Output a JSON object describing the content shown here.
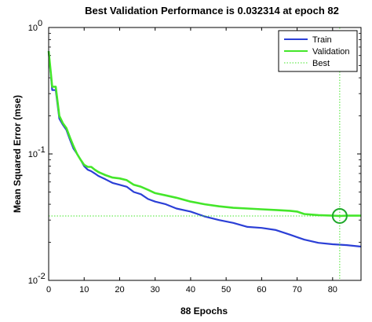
{
  "chart_data": {
    "type": "line",
    "title": "Best Validation Performance is 0.032314 at epoch 82",
    "xlabel": "88 Epochs",
    "ylabel": "Mean Squared Error  (mse)",
    "xlim": [
      0,
      88
    ],
    "ylim": [
      0.01,
      1
    ],
    "yscale": "log",
    "grid": false,
    "legend_position": "top-right",
    "x_ticks": [
      0,
      10,
      20,
      30,
      40,
      50,
      60,
      70,
      80
    ],
    "y_ticks": [
      {
        "value": 1,
        "label": "10",
        "exp": "0"
      },
      {
        "value": 0.1,
        "label": "10",
        "exp": "-1"
      },
      {
        "value": 0.01,
        "label": "10",
        "exp": "-2"
      }
    ],
    "best": {
      "epoch": 82,
      "value": 0.032314
    },
    "series": [
      {
        "name": "Train",
        "color": "#2b3fd6",
        "x": [
          0,
          1,
          2,
          3,
          4,
          5,
          6,
          7,
          8,
          9,
          10,
          11,
          12,
          13,
          14,
          16,
          18,
          20,
          22,
          24,
          26,
          28,
          30,
          33,
          36,
          40,
          44,
          48,
          52,
          56,
          60,
          64,
          68,
          72,
          76,
          80,
          84,
          88
        ],
        "y": [
          0.65,
          0.32,
          0.32,
          0.19,
          0.17,
          0.155,
          0.13,
          0.11,
          0.1,
          0.09,
          0.08,
          0.075,
          0.073,
          0.07,
          0.067,
          0.063,
          0.059,
          0.057,
          0.055,
          0.05,
          0.048,
          0.044,
          0.042,
          0.04,
          0.037,
          0.035,
          0.032,
          0.03,
          0.0285,
          0.0265,
          0.026,
          0.025,
          0.023,
          0.021,
          0.0198,
          0.0193,
          0.019,
          0.0185
        ]
      },
      {
        "name": "Validation",
        "color": "#44e62a",
        "x": [
          0,
          1,
          2,
          3,
          4,
          5,
          6,
          7,
          8,
          9,
          10,
          11,
          12,
          13,
          14,
          16,
          18,
          20,
          22,
          24,
          26,
          28,
          30,
          33,
          36,
          40,
          44,
          48,
          52,
          56,
          60,
          64,
          68,
          70,
          72,
          76,
          80,
          82,
          84,
          88
        ],
        "y": [
          0.65,
          0.34,
          0.34,
          0.2,
          0.175,
          0.16,
          0.135,
          0.115,
          0.1,
          0.09,
          0.082,
          0.079,
          0.079,
          0.075,
          0.072,
          0.068,
          0.065,
          0.064,
          0.062,
          0.057,
          0.055,
          0.052,
          0.049,
          0.047,
          0.045,
          0.042,
          0.04,
          0.0385,
          0.0375,
          0.037,
          0.0365,
          0.036,
          0.0355,
          0.035,
          0.0335,
          0.0328,
          0.0325,
          0.032314,
          0.0325,
          0.0325
        ]
      }
    ],
    "legend": [
      {
        "label": "Train",
        "color": "#2b3fd6",
        "style": "solid"
      },
      {
        "label": "Validation",
        "color": "#44e62a",
        "style": "solid"
      },
      {
        "label": "Best",
        "color": "#44e62a",
        "style": "dotted"
      }
    ]
  }
}
